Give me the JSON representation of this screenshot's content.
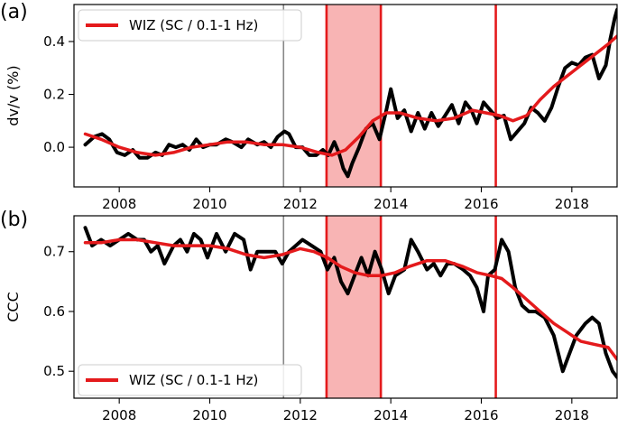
{
  "chart_data": [
    {
      "panel_letter": "(a)",
      "type": "line",
      "ylabel": "dv/v (%)",
      "xlim": [
        2007.0,
        2019.0
      ],
      "ylim": [
        -0.15,
        0.54
      ],
      "x_ticks": [
        2008,
        2010,
        2012,
        2014,
        2016,
        2018
      ],
      "y_ticks": [
        0.0,
        0.2,
        0.4
      ],
      "y_tick_labels": [
        "0.0",
        "0.2",
        "0.4"
      ],
      "legend": {
        "label": "WIZ (SC / 0.1-1 Hz)",
        "color": "#e41a1c",
        "placement": "top-left"
      },
      "shaded_interval": {
        "x": [
          2012.58,
          2013.78
        ],
        "color": "#f8b4b4"
      },
      "event_lines": [
        {
          "x": 2011.63,
          "color": "#888888"
        },
        {
          "x": 2012.58,
          "color": "#e41a1c"
        },
        {
          "x": 2013.78,
          "color": "#e41a1c"
        },
        {
          "x": 2016.32,
          "color": "#e41a1c"
        }
      ],
      "series": [
        {
          "name": "raw",
          "color": "#000000",
          "x": [
            2007.25,
            2007.45,
            2007.62,
            2007.78,
            2007.95,
            2008.12,
            2008.3,
            2008.45,
            2008.62,
            2008.8,
            2008.95,
            2009.1,
            2009.25,
            2009.4,
            2009.55,
            2009.7,
            2009.85,
            2010.0,
            2010.15,
            2010.35,
            2010.5,
            2010.7,
            2010.85,
            2011.05,
            2011.2,
            2011.35,
            2011.5,
            2011.65,
            2011.75,
            2011.9,
            2012.05,
            2012.2,
            2012.35,
            2012.5,
            2012.62,
            2012.75,
            2012.85,
            2012.95,
            2013.05,
            2013.15,
            2013.3,
            2013.45,
            2013.6,
            2013.75,
            2013.9,
            2014.0,
            2014.15,
            2014.3,
            2014.45,
            2014.6,
            2014.75,
            2014.9,
            2015.05,
            2015.2,
            2015.35,
            2015.5,
            2015.65,
            2015.78,
            2015.9,
            2016.05,
            2016.2,
            2016.35,
            2016.5,
            2016.65,
            2016.8,
            2016.95,
            2017.1,
            2017.25,
            2017.4,
            2017.55,
            2017.7,
            2017.85,
            2018.0,
            2018.15,
            2018.3,
            2018.45,
            2018.6,
            2018.75,
            2018.85,
            2018.95,
            2019.0
          ],
          "y": [
            0.01,
            0.04,
            0.05,
            0.03,
            -0.02,
            -0.03,
            -0.01,
            -0.04,
            -0.04,
            -0.02,
            -0.03,
            0.01,
            0.0,
            0.01,
            -0.01,
            0.03,
            0.0,
            0.01,
            0.01,
            0.03,
            0.02,
            0.0,
            0.03,
            0.01,
            0.02,
            0.0,
            0.04,
            0.06,
            0.05,
            0.0,
            0.0,
            -0.03,
            -0.03,
            -0.01,
            -0.03,
            0.02,
            -0.02,
            -0.08,
            -0.11,
            -0.06,
            0.0,
            0.07,
            0.09,
            0.03,
            0.14,
            0.22,
            0.11,
            0.14,
            0.06,
            0.13,
            0.07,
            0.13,
            0.08,
            0.12,
            0.16,
            0.09,
            0.17,
            0.14,
            0.09,
            0.17,
            0.14,
            0.11,
            0.12,
            0.03,
            0.06,
            0.09,
            0.15,
            0.13,
            0.1,
            0.15,
            0.23,
            0.3,
            0.32,
            0.31,
            0.34,
            0.35,
            0.26,
            0.31,
            0.41,
            0.49,
            0.52
          ]
        },
        {
          "name": "WIZ (SC / 0.1-1 Hz)",
          "color": "#e41a1c",
          "x": [
            2007.25,
            2007.6,
            2008.0,
            2008.4,
            2008.8,
            2009.2,
            2009.6,
            2010.0,
            2010.4,
            2010.8,
            2011.2,
            2011.6,
            2012.0,
            2012.4,
            2012.7,
            2013.0,
            2013.3,
            2013.6,
            2013.9,
            2014.2,
            2014.6,
            2015.0,
            2015.4,
            2015.8,
            2016.1,
            2016.4,
            2016.7,
            2017.0,
            2017.3,
            2017.6,
            2017.9,
            2018.2,
            2018.5,
            2018.8,
            2019.0
          ],
          "y": [
            0.05,
            0.03,
            0.0,
            -0.02,
            -0.03,
            -0.02,
            0.0,
            0.01,
            0.02,
            0.02,
            0.01,
            0.01,
            0.0,
            -0.02,
            -0.03,
            -0.01,
            0.04,
            0.1,
            0.13,
            0.13,
            0.11,
            0.1,
            0.11,
            0.14,
            0.13,
            0.12,
            0.1,
            0.12,
            0.18,
            0.23,
            0.27,
            0.31,
            0.35,
            0.39,
            0.42
          ]
        }
      ]
    },
    {
      "panel_letter": "(b)",
      "type": "line",
      "ylabel": "CCC",
      "xlim": [
        2007.0,
        2019.0
      ],
      "ylim": [
        0.455,
        0.76
      ],
      "x_ticks": [
        2008,
        2010,
        2012,
        2014,
        2016,
        2018
      ],
      "y_ticks": [
        0.5,
        0.6,
        0.7
      ],
      "y_tick_labels": [
        "0.5",
        "0.6",
        "0.7"
      ],
      "legend": {
        "label": "WIZ (SC / 0.1-1 Hz)",
        "color": "#e41a1c",
        "placement": "bottom-left"
      },
      "shaded_interval": {
        "x": [
          2012.58,
          2013.78
        ],
        "color": "#f8b4b4"
      },
      "event_lines": [
        {
          "x": 2011.63,
          "color": "#888888"
        },
        {
          "x": 2012.58,
          "color": "#e41a1c"
        },
        {
          "x": 2013.78,
          "color": "#e41a1c"
        },
        {
          "x": 2016.32,
          "color": "#e41a1c"
        }
      ],
      "series": [
        {
          "name": "raw",
          "color": "#000000",
          "x": [
            2007.25,
            2007.4,
            2007.6,
            2007.8,
            2008.0,
            2008.2,
            2008.4,
            2008.55,
            2008.7,
            2008.85,
            2009.0,
            2009.2,
            2009.35,
            2009.5,
            2009.65,
            2009.8,
            2009.95,
            2010.15,
            2010.35,
            2010.55,
            2010.75,
            2010.9,
            2011.05,
            2011.25,
            2011.45,
            2011.6,
            2011.75,
            2011.9,
            2012.05,
            2012.25,
            2012.45,
            2012.6,
            2012.75,
            2012.9,
            2013.05,
            2013.2,
            2013.35,
            2013.5,
            2013.65,
            2013.8,
            2013.95,
            2014.1,
            2014.3,
            2014.45,
            2014.6,
            2014.8,
            2014.95,
            2015.1,
            2015.25,
            2015.4,
            2015.6,
            2015.75,
            2015.9,
            2016.05,
            2016.15,
            2016.3,
            2016.45,
            2016.6,
            2016.75,
            2016.9,
            2017.05,
            2017.2,
            2017.4,
            2017.6,
            2017.8,
            2017.95,
            2018.1,
            2018.3,
            2018.45,
            2018.6,
            2018.75,
            2018.9,
            2019.0
          ],
          "y": [
            0.74,
            0.71,
            0.72,
            0.71,
            0.72,
            0.73,
            0.72,
            0.72,
            0.7,
            0.71,
            0.68,
            0.71,
            0.72,
            0.7,
            0.73,
            0.72,
            0.69,
            0.73,
            0.7,
            0.73,
            0.72,
            0.67,
            0.7,
            0.7,
            0.7,
            0.68,
            0.7,
            0.71,
            0.72,
            0.71,
            0.7,
            0.67,
            0.69,
            0.65,
            0.63,
            0.66,
            0.69,
            0.66,
            0.7,
            0.67,
            0.63,
            0.66,
            0.67,
            0.72,
            0.7,
            0.67,
            0.68,
            0.66,
            0.68,
            0.68,
            0.67,
            0.66,
            0.64,
            0.6,
            0.66,
            0.67,
            0.72,
            0.7,
            0.64,
            0.61,
            0.6,
            0.6,
            0.59,
            0.56,
            0.5,
            0.53,
            0.56,
            0.58,
            0.59,
            0.58,
            0.53,
            0.5,
            0.49
          ]
        },
        {
          "name": "WIZ (SC / 0.1-1 Hz)",
          "color": "#e41a1c",
          "x": [
            2007.25,
            2007.6,
            2008.0,
            2008.4,
            2008.8,
            2009.2,
            2009.6,
            2010.0,
            2010.4,
            2010.8,
            2011.2,
            2011.6,
            2012.0,
            2012.3,
            2012.6,
            2012.9,
            2013.2,
            2013.5,
            2013.8,
            2014.1,
            2014.4,
            2014.8,
            2015.2,
            2015.6,
            2015.9,
            2016.2,
            2016.45,
            2016.7,
            2017.0,
            2017.3,
            2017.6,
            2017.9,
            2018.2,
            2018.5,
            2018.8,
            2019.0
          ],
          "y": [
            0.715,
            0.715,
            0.72,
            0.72,
            0.715,
            0.71,
            0.71,
            0.71,
            0.705,
            0.695,
            0.69,
            0.695,
            0.705,
            0.7,
            0.69,
            0.675,
            0.665,
            0.66,
            0.66,
            0.665,
            0.675,
            0.685,
            0.685,
            0.675,
            0.665,
            0.66,
            0.655,
            0.64,
            0.62,
            0.6,
            0.58,
            0.565,
            0.55,
            0.545,
            0.54,
            0.52
          ]
        }
      ]
    }
  ]
}
